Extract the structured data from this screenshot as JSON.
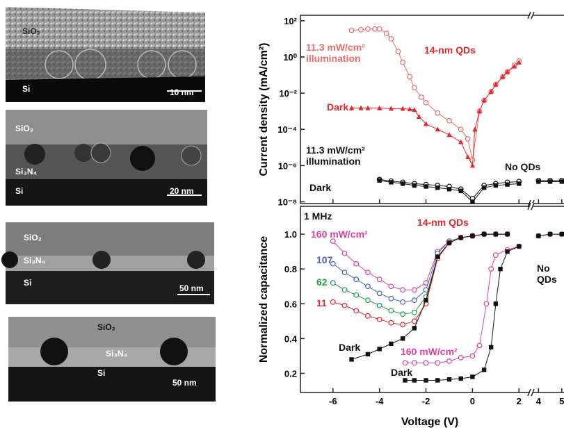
{
  "images": [
    {
      "labels": [
        "SiO₂",
        "Si"
      ],
      "scale_bar": "10 nm"
    },
    {
      "labels": [
        "SiO₂",
        "Si₃N₄",
        "Si"
      ],
      "scale_bar": "20 nm"
    },
    {
      "labels": [
        "SiO₂",
        "Si₃N₄",
        "Si"
      ],
      "scale_bar": "50 nm"
    },
    {
      "labels": [
        "SiO₂",
        "Si₃N₄",
        "Si"
      ],
      "scale_bar": "50 nm"
    }
  ],
  "chart_data": [
    {
      "type": "line",
      "y_label": "Current density (mA/cm²)",
      "y_scale": "log",
      "ylim": [
        8e-09,
        200
      ],
      "yticks": [
        {
          "value": 1e-08,
          "label": "10⁻⁸"
        },
        {
          "value": 1e-06,
          "label": "10⁻⁶"
        },
        {
          "value": 0.0001,
          "label": "10⁻⁴"
        },
        {
          "value": 0.01,
          "label": "10⁻²"
        },
        {
          "value": 1,
          "label": "10⁰"
        },
        {
          "value": 100,
          "label": "10²"
        }
      ],
      "xlim": [
        -7.4,
        5.1
      ],
      "axis_break": [
        2.5,
        3.75
      ],
      "annotations": [
        "14-nm QDs",
        "No QDs"
      ],
      "series": [
        {
          "name": "11.3 mW/cm² illumination",
          "color": "#f06a6a",
          "marker": "circle",
          "x": [
            -5.2,
            -4.8,
            -4.5,
            -4.2,
            -4,
            -3.7,
            -3.5,
            -3.2,
            -3,
            -2.7,
            -2.5,
            -2.2,
            -2,
            -1.5,
            -1,
            -0.5,
            -0.2,
            0,
            0.3,
            0.5,
            0.8,
            1,
            1.3,
            1.5,
            1.8,
            2
          ],
          "values": [
            30,
            32,
            35,
            35,
            35,
            20,
            10,
            2,
            0.5,
            0.08,
            0.02,
            0.006,
            0.003,
            0.0008,
            0.0003,
            0.0001,
            3e-05,
            2e-06,
            0.001,
            0.004,
            0.012,
            0.03,
            0.08,
            0.15,
            0.35,
            0.6
          ]
        },
        {
          "name": "Dark",
          "color": "#e8262c",
          "marker": "triangle",
          "x": [
            -5.2,
            -4.8,
            -4.5,
            -4,
            -3.5,
            -3,
            -2.7,
            -2.5,
            -2.3,
            -2,
            -1.5,
            -1,
            -0.5,
            -0.2,
            0,
            0.1,
            0.3,
            0.5,
            0.8,
            1,
            1.3,
            1.5,
            1.8,
            2
          ],
          "values": [
            0.0015,
            0.0015,
            0.0015,
            0.0015,
            0.0014,
            0.0014,
            0.0013,
            0.0012,
            0.0005,
            0.0002,
            0.0001,
            5e-05,
            2e-05,
            3e-06,
            1e-06,
            0.0001,
            0.001,
            0.004,
            0.012,
            0.03,
            0.08,
            0.15,
            0.3,
            0.5
          ]
        },
        {
          "name": "11.3 mW/cm² illumination",
          "color": "#111111",
          "marker": "circle",
          "x": [
            -4,
            -3.5,
            -3,
            -2.5,
            -2,
            -1.5,
            -1,
            -0.5,
            0,
            0.5,
            1,
            1.5,
            2,
            4,
            4.5,
            5
          ],
          "values": [
            1.7e-07,
            1.4e-07,
            1.2e-07,
            1e-07,
            9e-08,
            8e-08,
            7e-08,
            5e-08,
            1.5e-08,
            8e-08,
            1e-07,
            1.2e-07,
            1.3e-07,
            1.5e-07,
            1.5e-07,
            1.5e-07
          ]
        },
        {
          "name": "Dark",
          "color": "#111111",
          "marker": "square",
          "x": [
            -4,
            -3.5,
            -3,
            -2.5,
            -2,
            -1.5,
            -1,
            -0.5,
            0,
            0.5,
            1,
            1.5,
            2,
            4,
            4.5,
            5
          ],
          "values": [
            1.5e-07,
            1.2e-07,
            1e-07,
            8e-08,
            7e-08,
            6e-08,
            5e-08,
            4e-08,
            1e-08,
            6e-08,
            8e-08,
            9e-08,
            1e-07,
            1.3e-07,
            1.3e-07,
            1.3e-07
          ]
        }
      ]
    },
    {
      "type": "line",
      "x_label": "Voltage (V)",
      "y_label": "Normalized capacitance",
      "ylim": [
        0.09,
        1.16
      ],
      "yticks": [
        0.2,
        0.4,
        0.6,
        0.8,
        {
          "value": 1,
          "label": "1.0"
        }
      ],
      "xlim": [
        -7.4,
        5.1
      ],
      "axis_break": [
        2.5,
        3.75
      ],
      "xticks": [
        -6,
        -4,
        -2,
        0,
        2,
        4,
        5
      ],
      "annotations": [
        "1 MHz",
        "14-nm QDs",
        "No QDs"
      ],
      "series": [
        {
          "name": "160 mW/cm²",
          "color": "#e040a0",
          "marker": "circle",
          "x": [
            -6,
            -5.5,
            -5,
            -4.5,
            -4,
            -3.5,
            -3,
            -2.5,
            -2,
            -1.5,
            -1,
            -0.5,
            0,
            0.5,
            1,
            1.5
          ],
          "values": [
            0.96,
            0.89,
            0.83,
            0.78,
            0.74,
            0.7,
            0.68,
            0.68,
            0.72,
            0.9,
            0.96,
            0.98,
            0.99,
            1,
            1,
            1
          ]
        },
        {
          "name": "107",
          "color": "#4a64c8",
          "marker": "circle",
          "x": [
            -6,
            -5.5,
            -5,
            -4.5,
            -4,
            -3.5,
            -3,
            -2.5,
            -2,
            -1.5,
            -1,
            -0.5,
            0,
            0.5,
            1,
            1.5
          ],
          "values": [
            0.83,
            0.78,
            0.74,
            0.7,
            0.66,
            0.63,
            0.61,
            0.62,
            0.68,
            0.89,
            0.96,
            0.98,
            0.99,
            1,
            1,
            1
          ]
        },
        {
          "name": "62",
          "color": "#22a050",
          "marker": "circle",
          "x": [
            -6,
            -5.5,
            -5,
            -4.5,
            -4,
            -3.5,
            -3,
            -2.5,
            -2,
            -1.5,
            -1,
            -0.5,
            0,
            0.5,
            1,
            1.5
          ],
          "values": [
            0.72,
            0.68,
            0.65,
            0.62,
            0.59,
            0.56,
            0.54,
            0.55,
            0.64,
            0.87,
            0.95,
            0.98,
            0.99,
            1,
            1,
            1
          ]
        },
        {
          "name": "11",
          "color": "#e8262c",
          "marker": "circle",
          "x": [
            -6,
            -5.5,
            -5,
            -4.5,
            -4,
            -3.5,
            -3,
            -2.5,
            -2,
            -1.5,
            -1,
            -0.5,
            0,
            0.5,
            1,
            1.5
          ],
          "values": [
            0.61,
            0.59,
            0.56,
            0.53,
            0.51,
            0.49,
            0.48,
            0.5,
            0.6,
            0.86,
            0.95,
            0.98,
            0.99,
            1,
            1,
            1
          ]
        },
        {
          "name": "Dark",
          "color": "#111111",
          "marker": "square",
          "x": [
            -5.2,
            -4.5,
            -4,
            -3.5,
            -3,
            -2.5,
            -2,
            -1.5,
            -1,
            -0.5,
            0,
            0.5,
            1,
            1.5
          ],
          "values": [
            0.28,
            0.31,
            0.34,
            0.37,
            0.4,
            0.46,
            0.62,
            0.87,
            0.95,
            0.98,
            0.99,
            1,
            1,
            1
          ]
        },
        {
          "name": "160 mW/cm²",
          "color": "#e040a0",
          "marker": "circle",
          "x": [
            -2.9,
            -2.5,
            -2,
            -1.5,
            -1,
            -0.5,
            0,
            0.3,
            0.6,
            0.8,
            1,
            1.5,
            2,
            4,
            4.5,
            5
          ],
          "values": [
            0.26,
            0.26,
            0.26,
            0.26,
            0.27,
            0.29,
            0.3,
            0.36,
            0.6,
            0.8,
            0.88,
            0.91,
            0.93,
            0.99,
            1,
            1
          ]
        },
        {
          "name": "Dark",
          "color": "#111111",
          "marker": "square",
          "x": [
            -2.9,
            -2.5,
            -2,
            -1.5,
            -1,
            -0.5,
            0,
            0.5,
            0.8,
            1,
            1.2,
            1.5,
            2,
            4,
            4.5,
            5
          ],
          "values": [
            0.16,
            0.16,
            0.16,
            0.16,
            0.165,
            0.17,
            0.18,
            0.22,
            0.35,
            0.6,
            0.8,
            0.9,
            0.93,
            0.99,
            1,
            1
          ]
        }
      ]
    }
  ]
}
